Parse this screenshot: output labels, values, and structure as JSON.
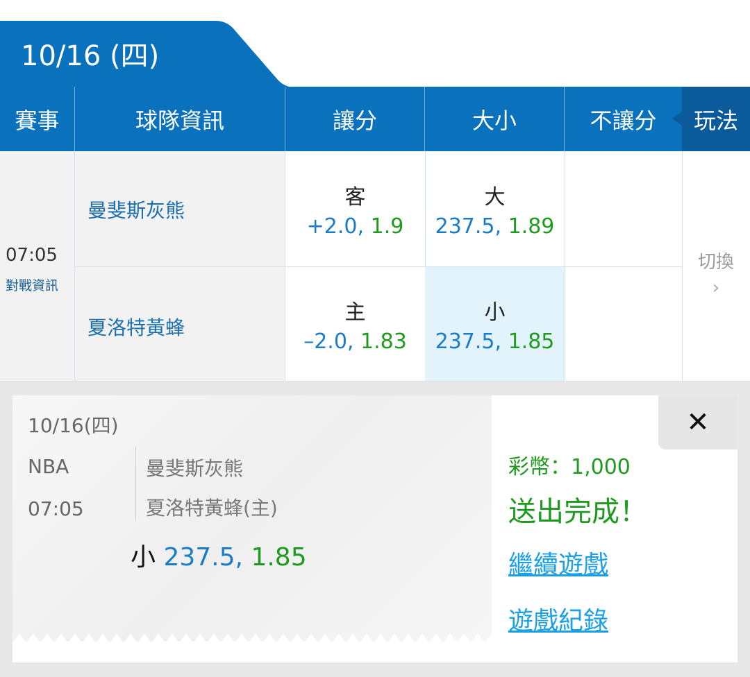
{
  "date_tab": "10/16 (四)",
  "header": {
    "event": "賽事",
    "team_info": "球隊資訊",
    "spread": "讓分",
    "total": "大小",
    "moneyline": "不讓分",
    "play": "玩法"
  },
  "match": {
    "time": "07:05",
    "matchup_link": "對戰資訊",
    "switch": "切換",
    "away": {
      "name": "曼斐斯灰熊",
      "spread_label": "客",
      "spread_line": "+2.0,",
      "spread_odds": "1.9",
      "total_label": "大",
      "total_line": "237.5,",
      "total_odds": "1.89"
    },
    "home": {
      "name": "夏洛特黃蜂",
      "spread_label": "主",
      "spread_line": "–2.0,",
      "spread_odds": "1.83",
      "total_label": "小",
      "total_line": "237.5,",
      "total_odds": "1.85"
    }
  },
  "ticket": {
    "date": "10/16(四)",
    "league": "NBA",
    "time": "07:05",
    "away": "曼斐斯灰熊",
    "home": "夏洛特黃蜂(主)",
    "pick_label": "小",
    "pick_line": "237.5,",
    "pick_odds": "1.85"
  },
  "result": {
    "coins": "彩幣：1,000",
    "status": "送出完成！",
    "continue": "繼續遊戲",
    "history": "遊戲紀錄",
    "close": "✕"
  },
  "colors": {
    "primary": "#0a72bc",
    "dark": "#0a5a9c",
    "green": "#1e9a1e",
    "link": "#1aa0e6",
    "selected": "#e3f3fc"
  }
}
